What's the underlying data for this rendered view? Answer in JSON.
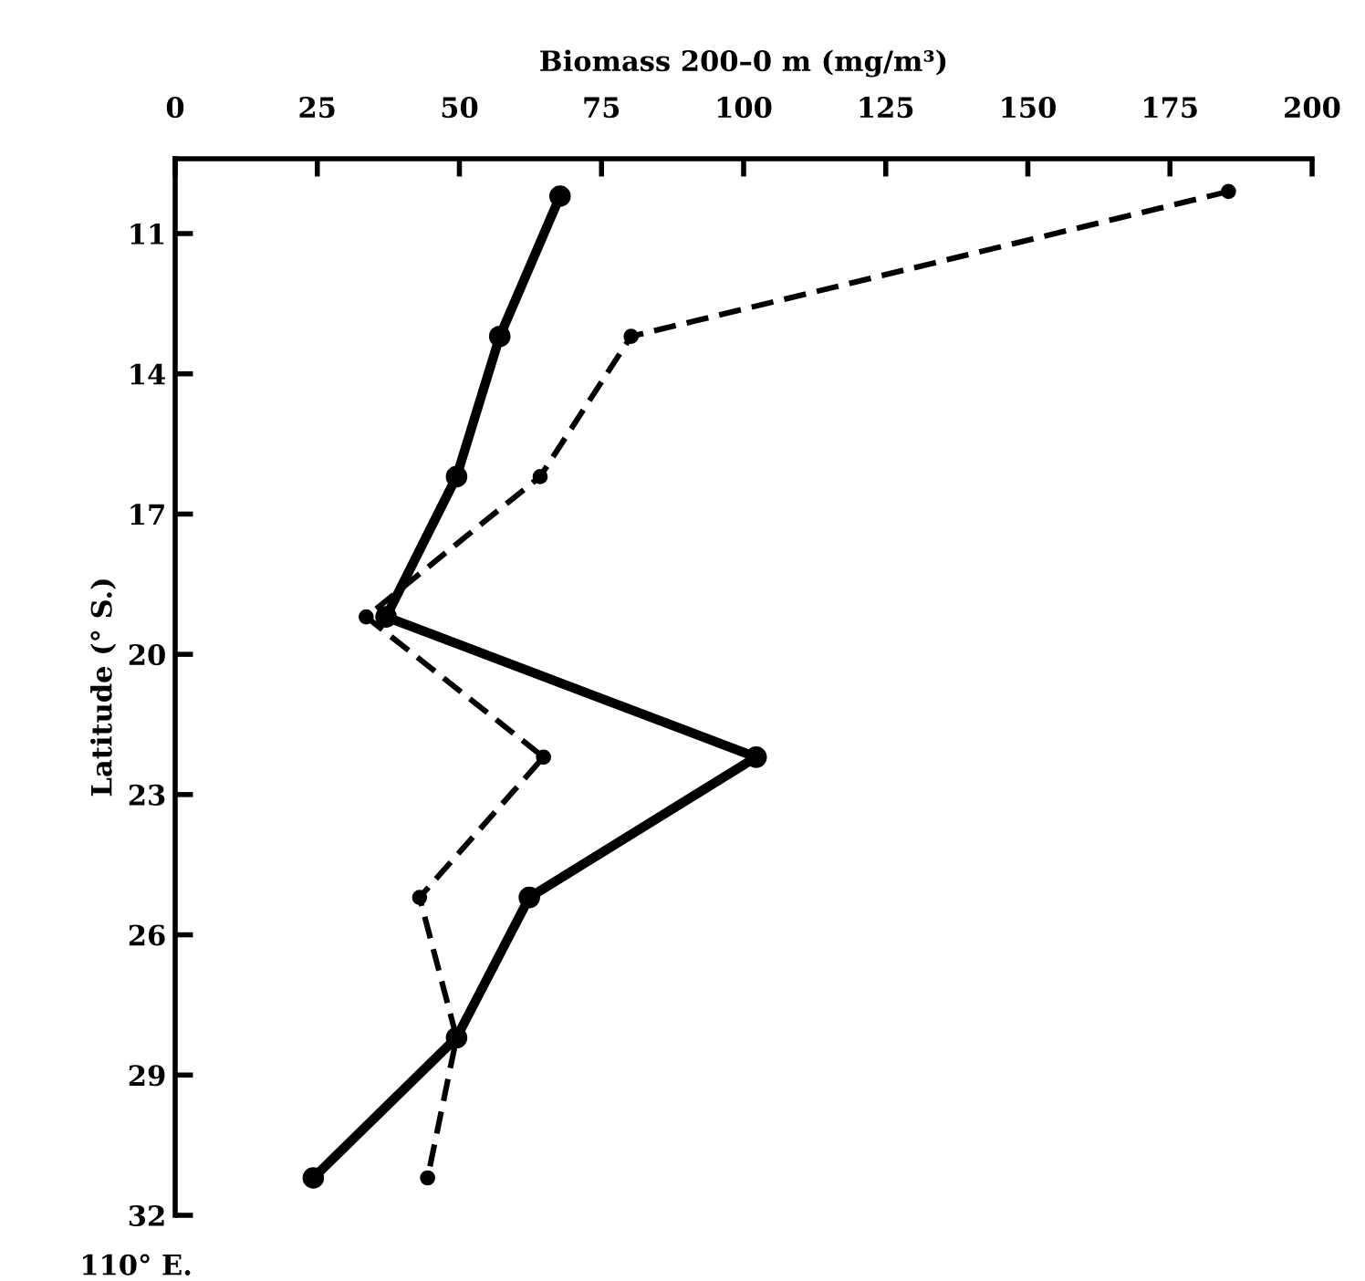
{
  "chart_data": {
    "type": "line",
    "xlabel": "Biomass 200–0 m (mg/m³)",
    "ylabel": "Latitude (° S.)",
    "xlim": [
      0,
      200
    ],
    "xticks": [
      0,
      25,
      50,
      75,
      100,
      125,
      150,
      175,
      200
    ],
    "ylim": [
      32,
      9.4
    ],
    "yticks": [
      11,
      14,
      17,
      20,
      23,
      26,
      29,
      32
    ],
    "marker": "circle",
    "grid": false,
    "legend": false,
    "annotations": [
      "110° E."
    ],
    "series": [
      {
        "color": "#000000",
        "line_style": "solid",
        "x": [
          67.7,
          57.1,
          49.5,
          37.1,
          102.2,
          62.3,
          49.5,
          24.3
        ],
        "values": [
          10.2,
          13.2,
          16.2,
          19.2,
          22.2,
          25.2,
          28.2,
          31.2
        ]
      },
      {
        "color": "#000000",
        "line_style": "dashed",
        "x": [
          185.3,
          80.2,
          64.2,
          33.6,
          64.8,
          43.0,
          49.5,
          44.4
        ],
        "values": [
          10.1,
          13.2,
          16.2,
          19.2,
          22.2,
          25.2,
          28.2,
          31.2
        ]
      }
    ]
  }
}
